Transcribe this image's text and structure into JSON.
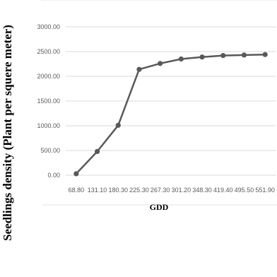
{
  "chart_data": {
    "type": "line",
    "title": "",
    "xlabel": "GDD",
    "ylabel": "Seedlings density (Plant per squere meter)",
    "categories": [
      "68.80",
      "131.10",
      "180.30",
      "225.30",
      "267.30",
      "301.20",
      "348.30",
      "419.40",
      "495.50",
      "551.90"
    ],
    "series": [
      {
        "values": [
          30,
          480,
          1010,
          2140,
          2260,
          2350,
          2390,
          2420,
          2430,
          2440
        ]
      }
    ],
    "yticks": [
      "0.00",
      "500.00",
      "1000.00",
      "1500.00",
      "2000.00",
      "2500.00",
      "3000.00"
    ],
    "ylim": [
      0,
      3000
    ],
    "grid": true,
    "colors": {
      "line": "#595959",
      "grid": "#d9d9d9",
      "tick_text": "#595959"
    }
  }
}
